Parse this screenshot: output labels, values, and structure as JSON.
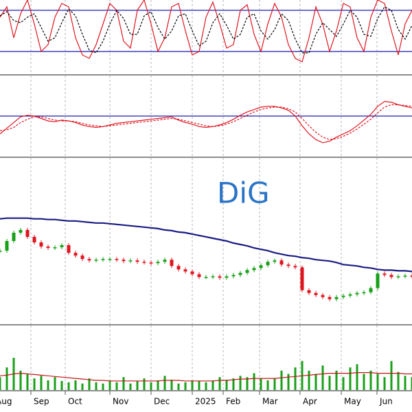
{
  "chart_data": [
    {
      "type": "line",
      "ylim": [
        -13,
        95
      ],
      "hlines": [
        80,
        20
      ],
      "hline_color": "#1c1cb4",
      "series": [
        {
          "color": "#e0141e",
          "dashed": false,
          "values": [
            70,
            85,
            40,
            75,
            95,
            60,
            20,
            30,
            70,
            90,
            85,
            40,
            15,
            10,
            30,
            60,
            90,
            80,
            35,
            25,
            80,
            95,
            60,
            20,
            40,
            85,
            90,
            50,
            15,
            20,
            70,
            92,
            60,
            25,
            30,
            80,
            88,
            45,
            20,
            60,
            90,
            70,
            30,
            10,
            5,
            40,
            85,
            60,
            20,
            50,
            90,
            85,
            40,
            20,
            70,
            95,
            90,
            50,
            15,
            60,
            80
          ]
        },
        {
          "color": "#000000",
          "dashed": true,
          "values": [
            72,
            78,
            65,
            62,
            70,
            75,
            55,
            35,
            40,
            62,
            82,
            72,
            45,
            22,
            18,
            35,
            60,
            80,
            68,
            45,
            45,
            72,
            78,
            55,
            38,
            50,
            72,
            75,
            50,
            28,
            35,
            62,
            75,
            58,
            38,
            45,
            70,
            75,
            50,
            38,
            52,
            75,
            65,
            38,
            18,
            18,
            45,
            62,
            52,
            42,
            60,
            80,
            70,
            45,
            42,
            68,
            85,
            80,
            52,
            38,
            58
          ]
        }
      ]
    },
    {
      "type": "line",
      "ylim": [
        0,
        100
      ],
      "hlines": [
        50
      ],
      "hline_color": "#1c1cb4",
      "series": [
        {
          "color": "#e0141e",
          "dashed": false,
          "values": [
            28,
            35,
            42,
            49,
            51,
            50,
            47,
            44,
            43,
            45,
            44,
            42,
            39,
            37,
            36,
            37,
            39,
            41,
            42,
            43,
            44,
            45,
            46,
            47,
            48,
            49,
            45,
            42,
            40,
            37,
            36,
            37,
            39,
            42,
            46,
            51,
            55,
            58,
            61,
            62,
            62,
            60,
            57,
            50,
            38,
            28,
            21,
            17,
            19,
            24,
            28,
            32,
            38,
            45,
            52,
            62,
            68,
            67,
            64,
            62,
            60
          ]
        },
        {
          "color": "#e0141e",
          "dashed": true,
          "values": [
            32,
            33,
            36,
            42,
            46,
            49,
            49,
            47,
            45,
            44,
            44,
            43,
            41,
            39,
            38,
            37,
            38,
            39,
            40,
            41,
            42,
            43,
            44,
            45,
            46,
            47,
            46,
            44,
            42,
            40,
            38,
            37,
            38,
            40,
            43,
            47,
            51,
            55,
            58,
            60,
            61,
            61,
            59,
            55,
            47,
            38,
            30,
            24,
            21,
            22,
            25,
            29,
            34,
            40,
            46,
            54,
            61,
            64,
            64,
            63,
            62
          ]
        }
      ]
    },
    {
      "type": "candlestick",
      "title": "DiG",
      "ylim": [
        10,
        34
      ],
      "up_color": "#18a018",
      "down_color": "#e0141e",
      "close": [
        20.6,
        22.0,
        23.2,
        23.6,
        22.6,
        21.8,
        21.2,
        21.0,
        21.1,
        21.4,
        20.3,
        19.9,
        19.4,
        19.2,
        19.3,
        19.4,
        19.4,
        19.3,
        19.1,
        19.2,
        19.0,
        18.9,
        18.8,
        19.0,
        19.3,
        18.4,
        17.9,
        17.6,
        17.2,
        16.8,
        16.8,
        16.9,
        16.7,
        16.9,
        17.1,
        17.4,
        17.8,
        18.1,
        18.5,
        19.0,
        19.2,
        18.6,
        18.4,
        18.2,
        14.9,
        14.5,
        14.2,
        13.9,
        13.6,
        13.9,
        14.1,
        14.3,
        14.5,
        14.6,
        15.2,
        17.3,
        17.1,
        16.8,
        16.9,
        17.0,
        16.9
      ],
      "series": [
        {
          "color": "#1a1a82",
          "dashed": false,
          "values": [
            25.2,
            25.3,
            25.3,
            25.3,
            25.3,
            25.2,
            25.2,
            25.1,
            25.1,
            25.0,
            24.9,
            24.9,
            24.8,
            24.7,
            24.6,
            24.6,
            24.5,
            24.4,
            24.3,
            24.2,
            24.1,
            24.0,
            23.9,
            23.8,
            23.6,
            23.5,
            23.3,
            23.2,
            23.0,
            22.8,
            22.6,
            22.4,
            22.2,
            22.0,
            21.7,
            21.5,
            21.3,
            21.0,
            20.8,
            20.6,
            20.3,
            20.1,
            19.9,
            19.8,
            19.6,
            19.5,
            19.3,
            19.2,
            19.1,
            18.9,
            18.6,
            18.5,
            18.4,
            18.2,
            18.1,
            17.9,
            17.8,
            17.8,
            17.7,
            17.7,
            17.6
          ]
        }
      ]
    },
    {
      "type": "bar",
      "ylim": [
        0,
        100
      ],
      "color": "#18a018",
      "values": [
        20,
        35,
        50,
        30,
        25,
        18,
        22,
        15,
        20,
        14,
        12,
        15,
        10,
        18,
        12,
        10,
        15,
        12,
        20,
        10,
        14,
        18,
        12,
        15,
        22,
        16,
        10,
        12,
        15,
        14,
        12,
        15,
        20,
        16,
        18,
        22,
        20,
        26,
        18,
        15,
        18,
        30,
        25,
        35,
        45,
        30,
        25,
        38,
        22,
        30,
        20,
        35,
        40,
        25,
        30,
        25,
        20,
        45,
        28,
        22,
        20
      ],
      "series": [
        {
          "color": "#c01818",
          "dashed": false,
          "values": [
            22,
            23,
            25,
            26,
            25,
            24,
            23,
            22,
            21,
            20,
            19,
            18,
            17,
            16,
            15,
            15,
            14,
            14,
            14,
            14,
            14,
            14,
            14,
            14,
            15,
            15,
            15,
            14,
            14,
            14,
            14,
            14,
            15,
            15,
            16,
            17,
            17,
            18,
            18,
            18,
            18,
            19,
            20,
            21,
            22,
            23,
            24,
            25,
            26,
            26,
            26,
            26,
            27,
            27,
            27,
            26,
            26,
            26,
            26,
            25,
            25
          ]
        }
      ],
      "xlim": [
        0,
        60
      ],
      "xticks": [
        {
          "value": -1,
          "label": "Aug"
        },
        {
          "value": 4.5,
          "label": "Sep"
        },
        {
          "value": 9.5,
          "label": "Oct"
        },
        {
          "value": 16,
          "label": "Nov"
        },
        {
          "value": 22,
          "label": "Dec"
        },
        {
          "value": 28,
          "label": "2025"
        },
        {
          "value": 32.5,
          "label": "Feb"
        },
        {
          "value": 37.8,
          "label": "Mar"
        },
        {
          "value": 43.7,
          "label": "Apr"
        },
        {
          "value": 49.7,
          "label": "May"
        },
        {
          "value": 54.9,
          "label": "Jun"
        }
      ]
    }
  ]
}
